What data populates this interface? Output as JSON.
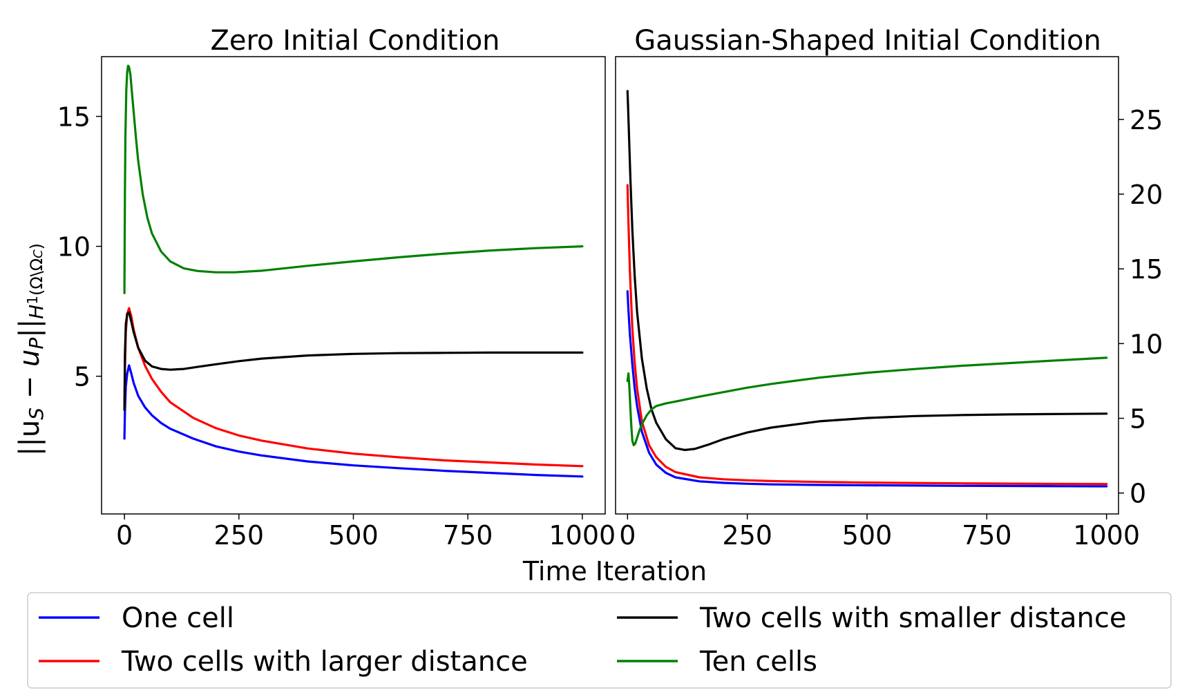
{
  "chart_data": [
    {
      "type": "line",
      "title": "Zero Initial Condition",
      "xlim": [
        -50,
        1050
      ],
      "ylim": [
        -0.3,
        17.3
      ],
      "yaxis_side": "left",
      "xticks": [
        0,
        250,
        500,
        750,
        1000
      ],
      "xtick_labels": [
        "0",
        "250",
        "500",
        "750",
        "1000"
      ],
      "yticks": [
        5,
        10,
        15
      ],
      "ytick_labels": [
        "5",
        "10",
        "15"
      ],
      "series": [
        {
          "name": "One cell",
          "color": "#0000ff",
          "x": [
            0,
            1,
            3,
            6,
            10,
            15,
            20,
            30,
            45,
            60,
            80,
            100,
            150,
            200,
            250,
            300,
            400,
            500,
            600,
            700,
            800,
            900,
            1000
          ],
          "y": [
            2.6,
            3.6,
            4.6,
            5.1,
            5.42,
            5.1,
            4.75,
            4.25,
            3.8,
            3.5,
            3.2,
            2.98,
            2.6,
            2.3,
            2.1,
            1.95,
            1.72,
            1.57,
            1.46,
            1.36,
            1.28,
            1.2,
            1.14
          ]
        },
        {
          "name": "Two cells with larger distance",
          "color": "#ff0000",
          "x": [
            0,
            1,
            3,
            6,
            10,
            15,
            20,
            30,
            45,
            60,
            80,
            100,
            150,
            200,
            250,
            300,
            400,
            500,
            600,
            700,
            800,
            900,
            1000
          ],
          "y": [
            3.7,
            5.2,
            6.7,
            7.4,
            7.62,
            7.3,
            6.8,
            6.1,
            5.4,
            4.9,
            4.4,
            4.0,
            3.4,
            3.0,
            2.72,
            2.52,
            2.22,
            2.02,
            1.88,
            1.76,
            1.68,
            1.6,
            1.54
          ]
        },
        {
          "name": "Two cells with smaller distance",
          "color": "#000000",
          "x": [
            0,
            1,
            3,
            6,
            10,
            15,
            20,
            30,
            45,
            60,
            80,
            100,
            130,
            160,
            200,
            250,
            300,
            400,
            500,
            600,
            700,
            800,
            900,
            1000
          ],
          "y": [
            3.7,
            5.8,
            7.0,
            7.4,
            7.45,
            7.1,
            6.7,
            6.1,
            5.6,
            5.38,
            5.28,
            5.25,
            5.28,
            5.36,
            5.46,
            5.58,
            5.68,
            5.8,
            5.86,
            5.89,
            5.9,
            5.91,
            5.91,
            5.91
          ]
        },
        {
          "name": "Ten cells",
          "color": "#008000",
          "x": [
            0,
            1,
            2,
            4,
            6,
            8,
            10,
            13,
            16,
            20,
            25,
            30,
            40,
            50,
            60,
            80,
            100,
            130,
            160,
            200,
            240,
            300,
            400,
            500,
            600,
            700,
            800,
            900,
            1000
          ],
          "y": [
            8.2,
            12.0,
            14.2,
            16.0,
            16.7,
            16.95,
            16.9,
            16.6,
            16.0,
            15.2,
            14.2,
            13.3,
            12.0,
            11.1,
            10.5,
            9.8,
            9.42,
            9.15,
            9.05,
            9.0,
            9.0,
            9.06,
            9.25,
            9.42,
            9.58,
            9.72,
            9.84,
            9.93,
            10.0
          ]
        }
      ]
    },
    {
      "type": "line",
      "title": "Gaussian-Shaped Initial Condition",
      "xlim": [
        -25,
        1025
      ],
      "ylim": [
        -1.4,
        29.2
      ],
      "yaxis_side": "right",
      "xticks": [
        0,
        250,
        500,
        750,
        1000
      ],
      "xtick_labels": [
        "0",
        "250",
        "500",
        "750",
        "1000"
      ],
      "yticks": [
        0,
        5,
        10,
        15,
        20,
        25
      ],
      "ytick_labels": [
        "0",
        "5",
        "10",
        "15",
        "20",
        "25"
      ],
      "series": [
        {
          "name": "One cell",
          "color": "#0000ff",
          "x": [
            0,
            2,
            5,
            10,
            15,
            20,
            30,
            45,
            60,
            80,
            100,
            150,
            200,
            250,
            300,
            400,
            500,
            600,
            700,
            800,
            900,
            1000
          ],
          "y": [
            13.5,
            12.2,
            10.6,
            8.6,
            7.0,
            5.8,
            4.1,
            2.7,
            1.9,
            1.35,
            1.05,
            0.78,
            0.68,
            0.62,
            0.58,
            0.54,
            0.52,
            0.5,
            0.48,
            0.47,
            0.46,
            0.45
          ]
        },
        {
          "name": "Two cells with larger distance",
          "color": "#ff0000",
          "x": [
            0,
            2,
            5,
            10,
            15,
            20,
            30,
            45,
            60,
            80,
            100,
            150,
            200,
            250,
            300,
            400,
            500,
            600,
            700,
            800,
            900,
            1000
          ],
          "y": [
            20.6,
            18.0,
            14.8,
            11.0,
            8.7,
            7.0,
            4.8,
            3.2,
            2.4,
            1.75,
            1.4,
            1.05,
            0.92,
            0.85,
            0.8,
            0.74,
            0.7,
            0.67,
            0.65,
            0.63,
            0.61,
            0.6
          ]
        },
        {
          "name": "Two cells with smaller distance",
          "color": "#000000",
          "x": [
            0,
            1,
            3,
            6,
            10,
            15,
            20,
            30,
            40,
            50,
            60,
            80,
            100,
            120,
            140,
            170,
            200,
            250,
            300,
            400,
            500,
            600,
            700,
            800,
            900,
            1000
          ],
          "y": [
            26.9,
            26.0,
            24.0,
            21.0,
            17.6,
            14.5,
            12.1,
            9.0,
            7.0,
            5.6,
            4.7,
            3.6,
            3.0,
            2.88,
            2.95,
            3.25,
            3.6,
            4.05,
            4.38,
            4.8,
            5.02,
            5.15,
            5.22,
            5.26,
            5.29,
            5.31
          ]
        },
        {
          "name": "Ten cells",
          "color": "#008000",
          "x": [
            0,
            2,
            4,
            6,
            8,
            10,
            13,
            16,
            20,
            25,
            30,
            40,
            50,
            60,
            80,
            100,
            150,
            200,
            250,
            300,
            400,
            500,
            600,
            700,
            800,
            900,
            1000
          ],
          "y": [
            7.5,
            8.0,
            7.0,
            5.6,
            4.4,
            3.5,
            3.2,
            3.3,
            3.7,
            4.2,
            4.6,
            5.2,
            5.6,
            5.82,
            6.0,
            6.12,
            6.45,
            6.75,
            7.05,
            7.3,
            7.72,
            8.05,
            8.3,
            8.52,
            8.7,
            8.88,
            9.05
          ]
        }
      ]
    }
  ],
  "figure": {
    "ylabel": "||u_S − u_P||_{H^1(Ω\\Ω_C)}",
    "ylabel_main": "||u",
    "ylabel_sub1": "S",
    "ylabel_mid": " − u",
    "ylabel_sub2": "P",
    "ylabel_end": "||",
    "ylabel_sub3": "H",
    "ylabel_sup": "1",
    "ylabel_sub4": "(Ω\\Ω",
    "ylabel_sub5": "C",
    "ylabel_sub6": ")",
    "xlabel": "Time Iteration"
  },
  "legend": {
    "placement": "bottom",
    "entries": [
      {
        "label": "One cell",
        "color": "#0000ff"
      },
      {
        "label": "Two cells with larger distance",
        "color": "#ff0000"
      },
      {
        "label": "Two cells with smaller distance",
        "color": "#000000"
      },
      {
        "label": "Ten cells",
        "color": "#008000"
      }
    ]
  }
}
